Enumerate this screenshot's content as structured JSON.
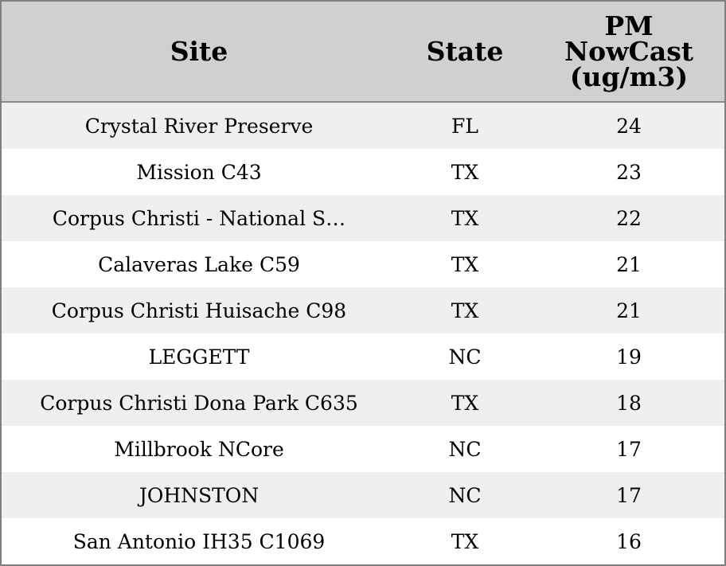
{
  "table": {
    "headers": {
      "site": "Site",
      "state": "State",
      "pm": "PM\nNowCast\n(ug/m3)"
    },
    "rows": [
      {
        "site": "Crystal River Preserve",
        "state": "FL",
        "pm": "24"
      },
      {
        "site": "Mission C43",
        "state": "TX",
        "pm": "23"
      },
      {
        "site": "Corpus Christi - National S…",
        "state": "TX",
        "pm": "22"
      },
      {
        "site": "Calaveras Lake C59",
        "state": "TX",
        "pm": "21"
      },
      {
        "site": "Corpus Christi Huisache C98",
        "state": "TX",
        "pm": "21"
      },
      {
        "site": "LEGGETT",
        "state": "NC",
        "pm": "19"
      },
      {
        "site": "Corpus Christi Dona Park C635",
        "state": "TX",
        "pm": "18"
      },
      {
        "site": "Millbrook NCore",
        "state": "NC",
        "pm": "17"
      },
      {
        "site": "JOHNSTON",
        "state": "NC",
        "pm": "17"
      },
      {
        "site": "San Antonio IH35 C1069",
        "state": "TX",
        "pm": "16"
      }
    ]
  },
  "colors": {
    "header_bg": "#d0d0d0",
    "row_shade": "#efefef",
    "row_plain": "#ffffff",
    "border": "#7f7f7f"
  }
}
